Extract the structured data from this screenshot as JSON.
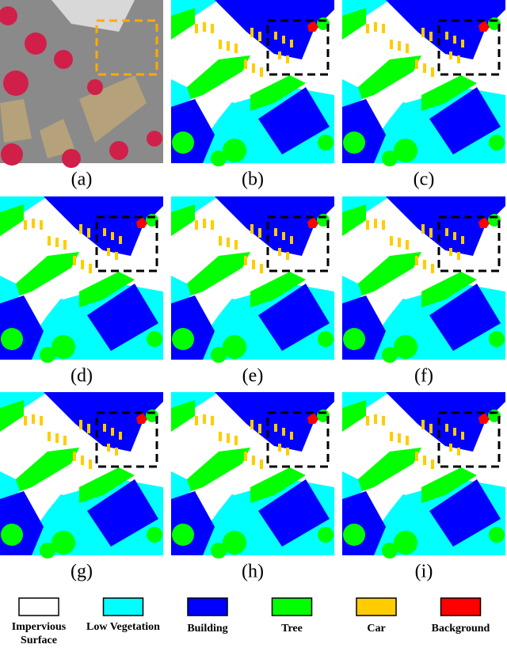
{
  "panels": [
    {
      "caption": "(a)"
    },
    {
      "caption": "(b)"
    },
    {
      "caption": "(c)"
    },
    {
      "caption": "(d)"
    },
    {
      "caption": "(e)"
    },
    {
      "caption": "(f)"
    },
    {
      "caption": "(g)"
    },
    {
      "caption": "(h)"
    },
    {
      "caption": "(i)"
    }
  ],
  "legend": [
    {
      "label": "Impervious Surface",
      "color": "#ffffff"
    },
    {
      "label": "Low Vegetation",
      "color": "#00ffff"
    },
    {
      "label": "Building",
      "color": "#0000ff"
    },
    {
      "label": "Tree",
      "color": "#00ff00"
    },
    {
      "label": "Car",
      "color": "#ffcc00"
    },
    {
      "label": "Background",
      "color": "#ff0000"
    }
  ]
}
